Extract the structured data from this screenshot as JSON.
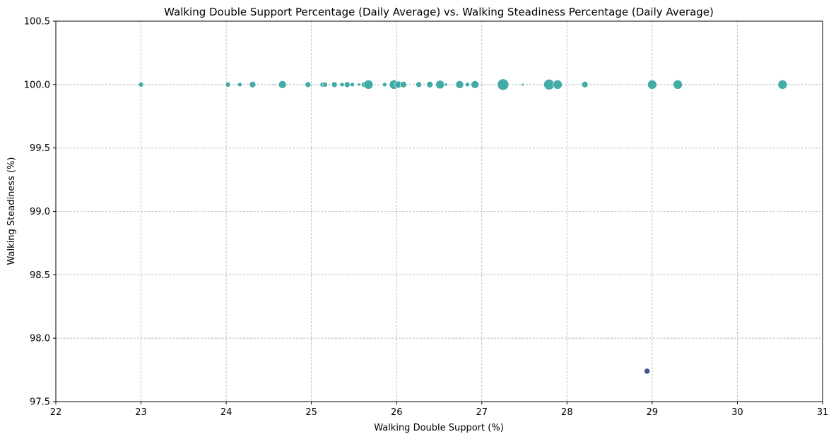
{
  "chart_data": {
    "type": "scatter",
    "title": "Walking Double Support Percentage (Daily Average) vs. Walking Steadiness Percentage (Daily Average)",
    "xlabel": "Walking Double Support (%)",
    "ylabel": "Walking Steadiness (%)",
    "xlim": [
      22,
      31
    ],
    "ylim": [
      97.5,
      100.5
    ],
    "xticks": [
      "22",
      "23",
      "24",
      "25",
      "26",
      "27",
      "28",
      "29",
      "30",
      "31"
    ],
    "yticks": [
      "97.5",
      "98.0",
      "98.5",
      "99.0",
      "99.5",
      "100.0",
      "100.5"
    ],
    "grid": true,
    "colors": {
      "main": "#3aa6a2",
      "outlier": "#3f4a8a"
    },
    "points": [
      {
        "x": 23.0,
        "y": 100.0,
        "size": 3.5,
        "color": "main"
      },
      {
        "x": 24.02,
        "y": 100.0,
        "size": 3.5,
        "color": "main"
      },
      {
        "x": 24.16,
        "y": 100.0,
        "size": 3,
        "color": "main"
      },
      {
        "x": 24.31,
        "y": 100.0,
        "size": 4.5,
        "color": "main"
      },
      {
        "x": 24.56,
        "y": 100.0,
        "size": 1.2,
        "color": "main"
      },
      {
        "x": 24.66,
        "y": 100.0,
        "size": 5.5,
        "color": "main"
      },
      {
        "x": 24.96,
        "y": 100.0,
        "size": 4,
        "color": "main"
      },
      {
        "x": 25.13,
        "y": 100.0,
        "size": 3.5,
        "color": "main"
      },
      {
        "x": 25.16,
        "y": 100.0,
        "size": 3.5,
        "color": "main"
      },
      {
        "x": 25.27,
        "y": 100.0,
        "size": 4,
        "color": "main"
      },
      {
        "x": 25.36,
        "y": 100.0,
        "size": 3,
        "color": "main"
      },
      {
        "x": 25.42,
        "y": 100.0,
        "size": 4,
        "color": "main"
      },
      {
        "x": 25.48,
        "y": 100.0,
        "size": 3,
        "color": "main"
      },
      {
        "x": 25.56,
        "y": 100.0,
        "size": 2,
        "color": "main"
      },
      {
        "x": 25.62,
        "y": 100.0,
        "size": 4,
        "color": "main"
      },
      {
        "x": 25.67,
        "y": 100.0,
        "size": 6.5,
        "color": "main"
      },
      {
        "x": 25.86,
        "y": 100.0,
        "size": 3,
        "color": "main"
      },
      {
        "x": 25.97,
        "y": 100.0,
        "size": 6.5,
        "color": "main"
      },
      {
        "x": 26.02,
        "y": 100.0,
        "size": 5,
        "color": "main"
      },
      {
        "x": 26.08,
        "y": 100.0,
        "size": 4.5,
        "color": "main"
      },
      {
        "x": 26.26,
        "y": 100.0,
        "size": 4,
        "color": "main"
      },
      {
        "x": 26.39,
        "y": 100.0,
        "size": 4.5,
        "color": "main"
      },
      {
        "x": 26.51,
        "y": 100.0,
        "size": 6,
        "color": "main"
      },
      {
        "x": 26.58,
        "y": 100.0,
        "size": 2,
        "color": "main"
      },
      {
        "x": 26.74,
        "y": 100.0,
        "size": 5.5,
        "color": "main"
      },
      {
        "x": 26.83,
        "y": 100.0,
        "size": 3,
        "color": "main"
      },
      {
        "x": 26.92,
        "y": 100.0,
        "size": 5.5,
        "color": "main"
      },
      {
        "x": 27.25,
        "y": 100.0,
        "size": 8,
        "color": "main"
      },
      {
        "x": 27.48,
        "y": 100.0,
        "size": 1.8,
        "color": "main"
      },
      {
        "x": 27.79,
        "y": 100.0,
        "size": 7.5,
        "color": "main"
      },
      {
        "x": 27.89,
        "y": 100.0,
        "size": 6.5,
        "color": "main"
      },
      {
        "x": 28.21,
        "y": 100.0,
        "size": 4.5,
        "color": "main"
      },
      {
        "x": 29.0,
        "y": 100.0,
        "size": 6.5,
        "color": "main"
      },
      {
        "x": 29.3,
        "y": 100.0,
        "size": 6.5,
        "color": "main"
      },
      {
        "x": 30.53,
        "y": 100.0,
        "size": 6.5,
        "color": "main"
      },
      {
        "x": 28.94,
        "y": 97.74,
        "size": 4,
        "color": "outlier"
      }
    ]
  }
}
